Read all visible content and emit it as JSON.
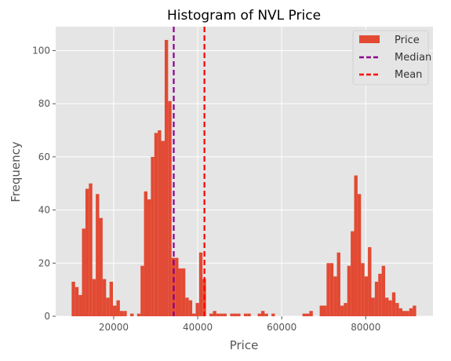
{
  "chart_data": {
    "type": "bar",
    "title": "Histogram of NVL Price",
    "xlabel": "Price",
    "ylabel": "Frequency",
    "xlim": [
      6200,
      96000
    ],
    "ylim": [
      0,
      109
    ],
    "xticks": [
      20000,
      40000,
      60000,
      80000
    ],
    "xtick_labels": [
      "20000",
      "40000",
      "60000",
      "80000"
    ],
    "yticks": [
      0,
      20,
      40,
      60,
      80,
      100
    ],
    "ytick_labels": [
      "0",
      "20",
      "40",
      "60",
      "80",
      "100"
    ],
    "grid": true,
    "legend_position": "top-right",
    "bin_start": 10000,
    "bin_width": 820,
    "counts": [
      13,
      11,
      8,
      33,
      48,
      50,
      14,
      46,
      37,
      14,
      7,
      13,
      4,
      6,
      2,
      2,
      0,
      1,
      0,
      1,
      19,
      47,
      44,
      60,
      69,
      70,
      66,
      104,
      81,
      22,
      22,
      18,
      18,
      7,
      6,
      1,
      5,
      24,
      14,
      0,
      1,
      2,
      1,
      1,
      1,
      0,
      1,
      1,
      1,
      0,
      1,
      1,
      0,
      0,
      1,
      2,
      1,
      0,
      1,
      0,
      0,
      0,
      0,
      0,
      0,
      0,
      0,
      1,
      1,
      2,
      0,
      0,
      4,
      4,
      20,
      20,
      15,
      24,
      4,
      5,
      19,
      32,
      53,
      46,
      20,
      15,
      26,
      7,
      13,
      16,
      19,
      7,
      6,
      9,
      5,
      3,
      2,
      2,
      3,
      4
    ],
    "series": [
      {
        "name": "Price",
        "kind": "bars",
        "color": "#e24a33"
      },
      {
        "name": "Median",
        "kind": "vline",
        "value": 34300,
        "color": "#8b008b",
        "style": "dashed"
      },
      {
        "name": "Mean",
        "kind": "vline",
        "value": 41600,
        "color": "#ff0000",
        "style": "dashed"
      }
    ],
    "colors": {
      "plot_background": "#e5e5e5",
      "grid": "#ffffff",
      "bars": "#e24a33",
      "median": "#8b008b",
      "mean": "#ff0000"
    }
  }
}
